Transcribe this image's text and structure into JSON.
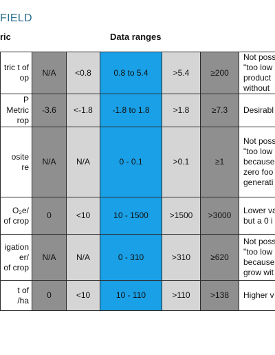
{
  "header": {
    "title": "FIELD",
    "metric_col": "ric",
    "ranges_col": "Data ranges"
  },
  "rows": [
    {
      "metric": [
        "tric t of",
        "op"
      ],
      "cells": [
        "N/A",
        "<0.8",
        "0.8 to 5.4",
        ">5.4",
        "≥200"
      ],
      "note": [
        "Not poss",
        "\"too low",
        "product",
        "without"
      ]
    },
    {
      "metric": [
        "P",
        "Metric",
        "rop"
      ],
      "cells": [
        "-3.6",
        "<-1.8",
        "-1.8 to 1.8",
        ">1.8",
        "≥7.3"
      ],
      "note": [
        "Desirabl"
      ]
    },
    {
      "metric": [
        "osite",
        "re"
      ],
      "cells": [
        "N/A",
        "N/A",
        "0 - 0.1",
        ">0.1",
        "≥1"
      ],
      "note": [
        "Not poss",
        "\"too low",
        "because",
        "zero foo",
        "generati"
      ]
    },
    {
      "metric": [
        "O₂e/",
        "of crop"
      ],
      "cells": [
        "0",
        "<10",
        "10 - 1500",
        ">1500",
        ">3000"
      ],
      "note": [
        "Lower va",
        "but a 0 i"
      ]
    },
    {
      "metric": [
        "igation",
        "er/",
        "of crop"
      ],
      "cells": [
        "N/A",
        "N/A",
        "0 - 310",
        ">310",
        "≥620"
      ],
      "note": [
        "Not poss",
        "\"too low",
        "because",
        "grow wit"
      ]
    },
    {
      "metric": [
        "t of",
        "/ha"
      ],
      "cells": [
        "0",
        "<10",
        "10 - 110",
        ">110",
        ">138"
      ],
      "note": [
        "Higher v"
      ]
    }
  ]
}
